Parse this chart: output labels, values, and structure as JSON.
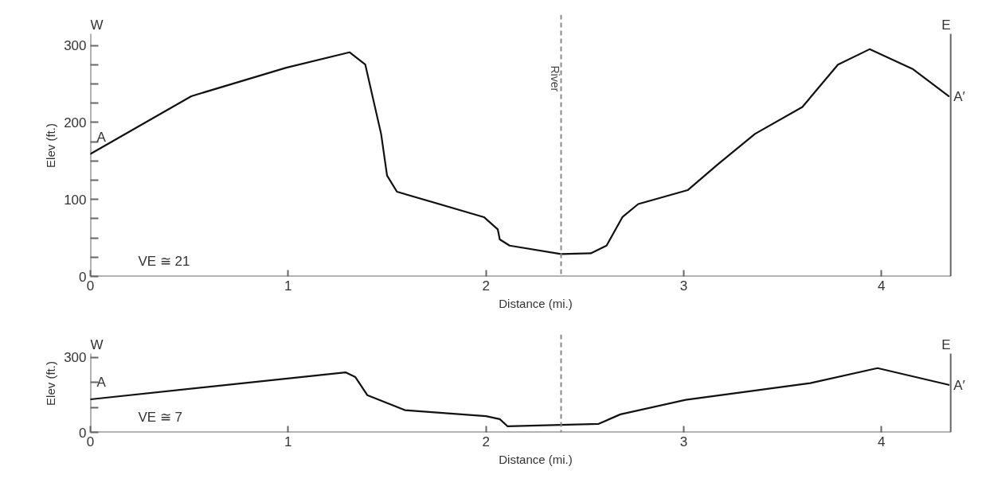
{
  "chart_data": [
    {
      "type": "line",
      "xlabel": "Distance (mi.)",
      "ylabel": "Elev (ft.)",
      "x": [
        0,
        0.51,
        0.99,
        1.31,
        1.39,
        1.47,
        1.5,
        1.55,
        1.99,
        2.06,
        2.07,
        2.12,
        2.38,
        2.53,
        2.61,
        2.69,
        2.77,
        3.02,
        3.17,
        3.36,
        3.6,
        3.78,
        3.94,
        4.16,
        4.34
      ],
      "series": [
        {
          "color": "#111111",
          "values": [
            159,
            234,
            271,
            291,
            275,
            185,
            131,
            110,
            77,
            61,
            48,
            40,
            29,
            30,
            40,
            77,
            94,
            112,
            145,
            185,
            220,
            275,
            295,
            269,
            234
          ]
        }
      ],
      "xlim": [
        0,
        4.35
      ],
      "ylim": [
        0,
        315
      ],
      "xticks": [
        0,
        1,
        2,
        3,
        4
      ],
      "yticks": [
        0,
        {
          "value": 25,
          "label": null
        },
        {
          "value": 50,
          "label": null
        },
        {
          "value": 75,
          "label": null
        },
        100,
        {
          "value": 125,
          "label": null
        },
        {
          "value": 150,
          "label": null
        },
        {
          "value": 175,
          "label": null
        },
        200,
        {
          "value": 225,
          "label": null
        },
        {
          "value": 250,
          "label": null
        },
        {
          "value": 275,
          "label": null
        },
        300
      ],
      "ref_lines": [
        {
          "axis": "x",
          "value": 2.38,
          "label": "River",
          "color": "#888888",
          "line_style": "dashed"
        }
      ],
      "annotations": [
        "W",
        "E",
        "VE ≅ 21",
        "A",
        "A′"
      ]
    },
    {
      "type": "line",
      "xlabel": "Distance (mi.)",
      "ylabel": "Elev (ft.)",
      "x": [
        0,
        1.29,
        1.34,
        1.4,
        1.59,
        2.0,
        2.07,
        2.11,
        2.57,
        2.68,
        3.01,
        3.64,
        3.98,
        4.34
      ],
      "series": [
        {
          "color": "#111111",
          "values": [
            132,
            240,
            221,
            149,
            89,
            65,
            53,
            24,
            34,
            72,
            130,
            197,
            257,
            190
          ]
        }
      ],
      "xlim": [
        0,
        4.35
      ],
      "ylim": [
        0,
        315
      ],
      "xticks": [
        0,
        1,
        2,
        3,
        4
      ],
      "yticks": [
        0,
        {
          "value": 100,
          "label": null
        },
        {
          "value": 200,
          "label": null
        },
        300
      ],
      "ref_lines": [
        {
          "axis": "x",
          "value": 2.38,
          "label": null,
          "color": "#888888",
          "line_style": "dashed"
        }
      ],
      "annotations": [
        "W",
        "E",
        "VE ≅ 7",
        "A",
        "A′"
      ]
    }
  ]
}
